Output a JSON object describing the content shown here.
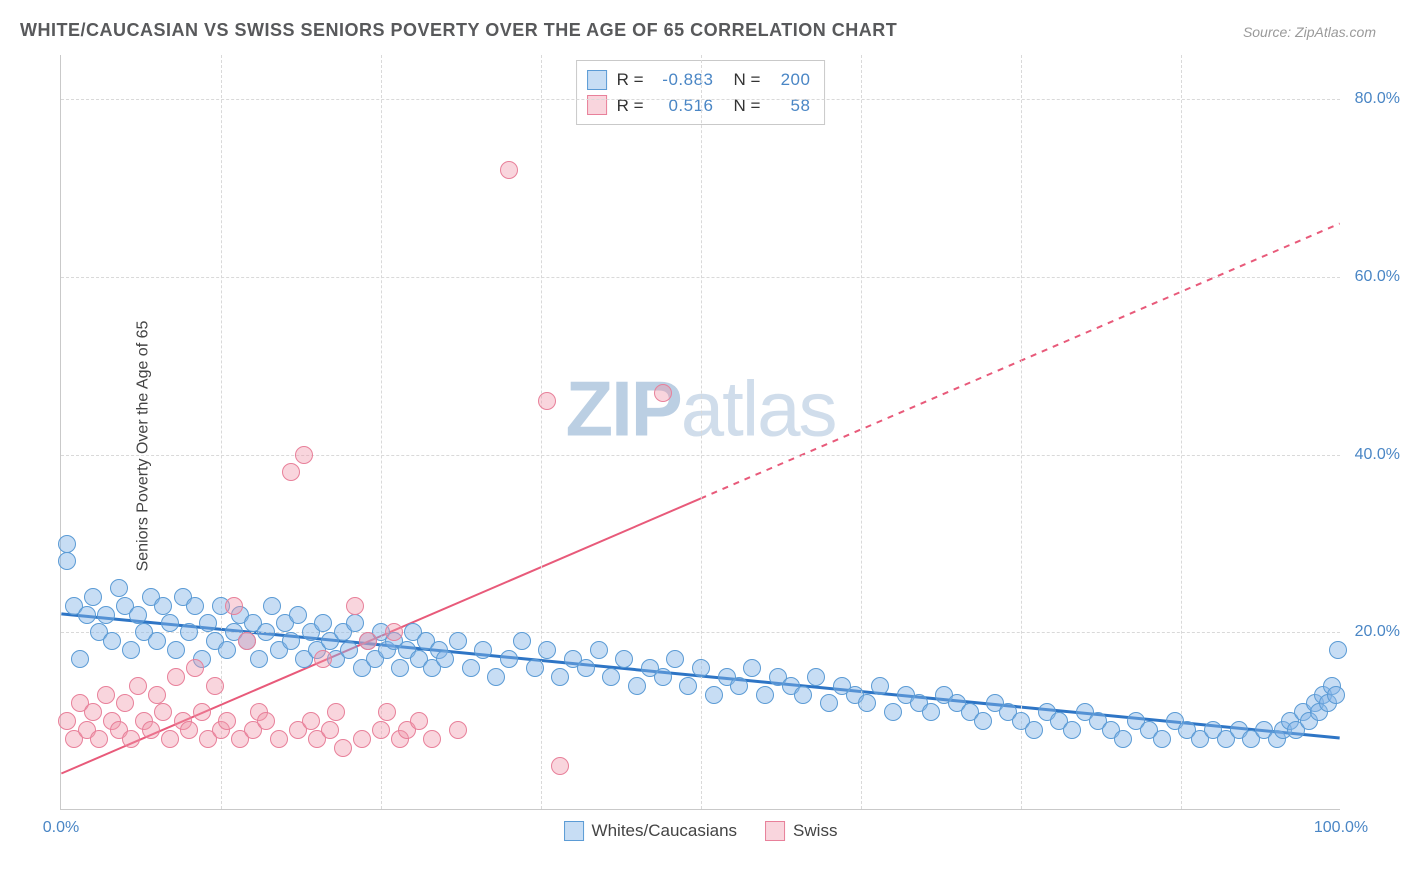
{
  "title": "WHITE/CAUCASIAN VS SWISS SENIORS POVERTY OVER THE AGE OF 65 CORRELATION CHART",
  "source_label": "Source: ZipAtlas.com",
  "ylabel": "Seniors Poverty Over the Age of 65",
  "watermark": {
    "part1": "ZIP",
    "part2": "atlas"
  },
  "chart": {
    "type": "scatter",
    "xlim": [
      0,
      100
    ],
    "ylim": [
      0,
      85
    ],
    "xticks": [
      0,
      100
    ],
    "xtick_labels": [
      "0.0%",
      "100.0%"
    ],
    "xticks_minor": [
      12.5,
      25,
      37.5,
      50,
      62.5,
      75,
      87.5
    ],
    "yticks": [
      20,
      40,
      60,
      80
    ],
    "ytick_labels": [
      "20.0%",
      "40.0%",
      "60.0%",
      "80.0%"
    ],
    "background_color": "#ffffff",
    "grid_color": "#d9d9d9",
    "point_radius": 9,
    "axis_color": "#c9c9c9",
    "label_color": "#4a86c5",
    "title_color": "#58595b",
    "title_fontsize": 18,
    "label_fontsize": 16
  },
  "series": [
    {
      "name": "Whites/Caucasians",
      "color_fill": "rgba(130,180,230,0.45)",
      "color_stroke": "#5b9bd5",
      "correlation_r": "-0.883",
      "correlation_n": "200",
      "trend": {
        "x1": 0,
        "y1": 22,
        "x2": 100,
        "y2": 8,
        "solid_until_x": 100,
        "color": "#2e75c5",
        "width": 3
      },
      "points": [
        [
          0.5,
          30
        ],
        [
          0.5,
          28
        ],
        [
          1,
          23
        ],
        [
          1.5,
          17
        ],
        [
          2,
          22
        ],
        [
          2.5,
          24
        ],
        [
          3,
          20
        ],
        [
          3.5,
          22
        ],
        [
          4,
          19
        ],
        [
          4.5,
          25
        ],
        [
          5,
          23
        ],
        [
          5.5,
          18
        ],
        [
          6,
          22
        ],
        [
          6.5,
          20
        ],
        [
          7,
          24
        ],
        [
          7.5,
          19
        ],
        [
          8,
          23
        ],
        [
          8.5,
          21
        ],
        [
          9,
          18
        ],
        [
          9.5,
          24
        ],
        [
          10,
          20
        ],
        [
          10.5,
          23
        ],
        [
          11,
          17
        ],
        [
          11.5,
          21
        ],
        [
          12,
          19
        ],
        [
          12.5,
          23
        ],
        [
          13,
          18
        ],
        [
          13.5,
          20
        ],
        [
          14,
          22
        ],
        [
          14.5,
          19
        ],
        [
          15,
          21
        ],
        [
          15.5,
          17
        ],
        [
          16,
          20
        ],
        [
          16.5,
          23
        ],
        [
          17,
          18
        ],
        [
          17.5,
          21
        ],
        [
          18,
          19
        ],
        [
          18.5,
          22
        ],
        [
          19,
          17
        ],
        [
          19.5,
          20
        ],
        [
          20,
          18
        ],
        [
          20.5,
          21
        ],
        [
          21,
          19
        ],
        [
          21.5,
          17
        ],
        [
          22,
          20
        ],
        [
          22.5,
          18
        ],
        [
          23,
          21
        ],
        [
          23.5,
          16
        ],
        [
          24,
          19
        ],
        [
          24.5,
          17
        ],
        [
          25,
          20
        ],
        [
          25.5,
          18
        ],
        [
          26,
          19
        ],
        [
          26.5,
          16
        ],
        [
          27,
          18
        ],
        [
          27.5,
          20
        ],
        [
          28,
          17
        ],
        [
          28.5,
          19
        ],
        [
          29,
          16
        ],
        [
          29.5,
          18
        ],
        [
          30,
          17
        ],
        [
          31,
          19
        ],
        [
          32,
          16
        ],
        [
          33,
          18
        ],
        [
          34,
          15
        ],
        [
          35,
          17
        ],
        [
          36,
          19
        ],
        [
          37,
          16
        ],
        [
          38,
          18
        ],
        [
          39,
          15
        ],
        [
          40,
          17
        ],
        [
          41,
          16
        ],
        [
          42,
          18
        ],
        [
          43,
          15
        ],
        [
          44,
          17
        ],
        [
          45,
          14
        ],
        [
          46,
          16
        ],
        [
          47,
          15
        ],
        [
          48,
          17
        ],
        [
          49,
          14
        ],
        [
          50,
          16
        ],
        [
          51,
          13
        ],
        [
          52,
          15
        ],
        [
          53,
          14
        ],
        [
          54,
          16
        ],
        [
          55,
          13
        ],
        [
          56,
          15
        ],
        [
          57,
          14
        ],
        [
          58,
          13
        ],
        [
          59,
          15
        ],
        [
          60,
          12
        ],
        [
          61,
          14
        ],
        [
          62,
          13
        ],
        [
          63,
          12
        ],
        [
          64,
          14
        ],
        [
          65,
          11
        ],
        [
          66,
          13
        ],
        [
          67,
          12
        ],
        [
          68,
          11
        ],
        [
          69,
          13
        ],
        [
          70,
          12
        ],
        [
          71,
          11
        ],
        [
          72,
          10
        ],
        [
          73,
          12
        ],
        [
          74,
          11
        ],
        [
          75,
          10
        ],
        [
          76,
          9
        ],
        [
          77,
          11
        ],
        [
          78,
          10
        ],
        [
          79,
          9
        ],
        [
          80,
          11
        ],
        [
          81,
          10
        ],
        [
          82,
          9
        ],
        [
          83,
          8
        ],
        [
          84,
          10
        ],
        [
          85,
          9
        ],
        [
          86,
          8
        ],
        [
          87,
          10
        ],
        [
          88,
          9
        ],
        [
          89,
          8
        ],
        [
          90,
          9
        ],
        [
          91,
          8
        ],
        [
          92,
          9
        ],
        [
          93,
          8
        ],
        [
          94,
          9
        ],
        [
          95,
          8
        ],
        [
          95.5,
          9
        ],
        [
          96,
          10
        ],
        [
          96.5,
          9
        ],
        [
          97,
          11
        ],
        [
          97.5,
          10
        ],
        [
          98,
          12
        ],
        [
          98.3,
          11
        ],
        [
          98.6,
          13
        ],
        [
          99,
          12
        ],
        [
          99.3,
          14
        ],
        [
          99.6,
          13
        ],
        [
          99.8,
          18
        ]
      ]
    },
    {
      "name": "Swiss",
      "color_fill": "rgba(240,150,170,0.4)",
      "color_stroke": "#e8809a",
      "correlation_r": "0.516",
      "correlation_n": "58",
      "trend": {
        "x1": 0,
        "y1": 4,
        "x2": 100,
        "y2": 66,
        "solid_until_x": 50,
        "color": "#e85a7a",
        "width": 2
      },
      "points": [
        [
          0.5,
          10
        ],
        [
          1,
          8
        ],
        [
          1.5,
          12
        ],
        [
          2,
          9
        ],
        [
          2.5,
          11
        ],
        [
          3,
          8
        ],
        [
          3.5,
          13
        ],
        [
          4,
          10
        ],
        [
          4.5,
          9
        ],
        [
          5,
          12
        ],
        [
          5.5,
          8
        ],
        [
          6,
          14
        ],
        [
          6.5,
          10
        ],
        [
          7,
          9
        ],
        [
          7.5,
          13
        ],
        [
          8,
          11
        ],
        [
          8.5,
          8
        ],
        [
          9,
          15
        ],
        [
          9.5,
          10
        ],
        [
          10,
          9
        ],
        [
          10.5,
          16
        ],
        [
          11,
          11
        ],
        [
          11.5,
          8
        ],
        [
          12,
          14
        ],
        [
          12.5,
          9
        ],
        [
          13,
          10
        ],
        [
          13.5,
          23
        ],
        [
          14,
          8
        ],
        [
          14.5,
          19
        ],
        [
          15,
          9
        ],
        [
          15.5,
          11
        ],
        [
          16,
          10
        ],
        [
          17,
          8
        ],
        [
          18,
          38
        ],
        [
          18.5,
          9
        ],
        [
          19,
          40
        ],
        [
          19.5,
          10
        ],
        [
          20,
          8
        ],
        [
          20.5,
          17
        ],
        [
          21,
          9
        ],
        [
          21.5,
          11
        ],
        [
          22,
          7
        ],
        [
          23,
          23
        ],
        [
          23.5,
          8
        ],
        [
          24,
          19
        ],
        [
          25,
          9
        ],
        [
          25.5,
          11
        ],
        [
          26,
          20
        ],
        [
          26.5,
          8
        ],
        [
          27,
          9
        ],
        [
          28,
          10
        ],
        [
          29,
          8
        ],
        [
          31,
          9
        ],
        [
          35,
          72
        ],
        [
          38,
          46
        ],
        [
          39,
          5
        ],
        [
          47,
          47
        ]
      ]
    }
  ],
  "correlation_box": {
    "r_label": "R =",
    "n_label": "N ="
  },
  "legend_label_1": "Whites/Caucasians",
  "legend_label_2": "Swiss"
}
